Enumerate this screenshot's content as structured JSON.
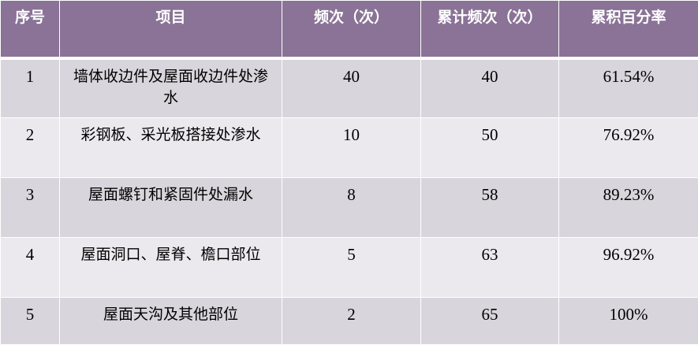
{
  "headers": [
    "序号",
    "项目",
    "频次（次）",
    "累计频次（次）",
    "累积百分率"
  ],
  "rows": [
    [
      "1",
      "墙体收边件及屋面收边件处渗水",
      "40",
      "40",
      "61.54%"
    ],
    [
      "2",
      "彩钢板、采光板搭接处渗水",
      "10",
      "50",
      "76.92%"
    ],
    [
      "3",
      "屋面螺钉和紧固件处漏水",
      "8",
      "58",
      "89.23%"
    ],
    [
      "4",
      "屋面洞口、屋脊、檐口部位",
      "5",
      "63",
      "96.92%"
    ],
    [
      "5",
      "屋面天沟及其他部位",
      "2",
      "65",
      "100%"
    ]
  ],
  "colors": {
    "header": "#8a7396",
    "row_odd": "#d9d5dc",
    "row_even": "#ebe9ed"
  }
}
